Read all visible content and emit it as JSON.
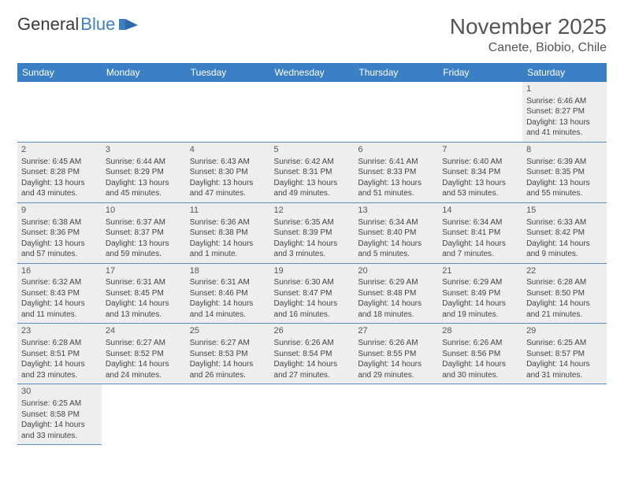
{
  "logo": {
    "part1": "General",
    "part2": "Blue"
  },
  "title": "November 2025",
  "location": "Canete, Biobio, Chile",
  "colors": {
    "header_bg": "#3b7fc4",
    "header_text": "#ffffff",
    "cell_bg": "#eeeeee",
    "rule": "#5a8fc7",
    "text": "#444444"
  },
  "day_headers": [
    "Sunday",
    "Monday",
    "Tuesday",
    "Wednesday",
    "Thursday",
    "Friday",
    "Saturday"
  ],
  "weeks": [
    [
      null,
      null,
      null,
      null,
      null,
      null,
      {
        "n": "1",
        "sr": "Sunrise: 6:46 AM",
        "ss": "Sunset: 8:27 PM",
        "dl1": "Daylight: 13 hours",
        "dl2": "and 41 minutes."
      }
    ],
    [
      {
        "n": "2",
        "sr": "Sunrise: 6:45 AM",
        "ss": "Sunset: 8:28 PM",
        "dl1": "Daylight: 13 hours",
        "dl2": "and 43 minutes."
      },
      {
        "n": "3",
        "sr": "Sunrise: 6:44 AM",
        "ss": "Sunset: 8:29 PM",
        "dl1": "Daylight: 13 hours",
        "dl2": "and 45 minutes."
      },
      {
        "n": "4",
        "sr": "Sunrise: 6:43 AM",
        "ss": "Sunset: 8:30 PM",
        "dl1": "Daylight: 13 hours",
        "dl2": "and 47 minutes."
      },
      {
        "n": "5",
        "sr": "Sunrise: 6:42 AM",
        "ss": "Sunset: 8:31 PM",
        "dl1": "Daylight: 13 hours",
        "dl2": "and 49 minutes."
      },
      {
        "n": "6",
        "sr": "Sunrise: 6:41 AM",
        "ss": "Sunset: 8:33 PM",
        "dl1": "Daylight: 13 hours",
        "dl2": "and 51 minutes."
      },
      {
        "n": "7",
        "sr": "Sunrise: 6:40 AM",
        "ss": "Sunset: 8:34 PM",
        "dl1": "Daylight: 13 hours",
        "dl2": "and 53 minutes."
      },
      {
        "n": "8",
        "sr": "Sunrise: 6:39 AM",
        "ss": "Sunset: 8:35 PM",
        "dl1": "Daylight: 13 hours",
        "dl2": "and 55 minutes."
      }
    ],
    [
      {
        "n": "9",
        "sr": "Sunrise: 6:38 AM",
        "ss": "Sunset: 8:36 PM",
        "dl1": "Daylight: 13 hours",
        "dl2": "and 57 minutes."
      },
      {
        "n": "10",
        "sr": "Sunrise: 6:37 AM",
        "ss": "Sunset: 8:37 PM",
        "dl1": "Daylight: 13 hours",
        "dl2": "and 59 minutes."
      },
      {
        "n": "11",
        "sr": "Sunrise: 6:36 AM",
        "ss": "Sunset: 8:38 PM",
        "dl1": "Daylight: 14 hours",
        "dl2": "and 1 minute."
      },
      {
        "n": "12",
        "sr": "Sunrise: 6:35 AM",
        "ss": "Sunset: 8:39 PM",
        "dl1": "Daylight: 14 hours",
        "dl2": "and 3 minutes."
      },
      {
        "n": "13",
        "sr": "Sunrise: 6:34 AM",
        "ss": "Sunset: 8:40 PM",
        "dl1": "Daylight: 14 hours",
        "dl2": "and 5 minutes."
      },
      {
        "n": "14",
        "sr": "Sunrise: 6:34 AM",
        "ss": "Sunset: 8:41 PM",
        "dl1": "Daylight: 14 hours",
        "dl2": "and 7 minutes."
      },
      {
        "n": "15",
        "sr": "Sunrise: 6:33 AM",
        "ss": "Sunset: 8:42 PM",
        "dl1": "Daylight: 14 hours",
        "dl2": "and 9 minutes."
      }
    ],
    [
      {
        "n": "16",
        "sr": "Sunrise: 6:32 AM",
        "ss": "Sunset: 8:43 PM",
        "dl1": "Daylight: 14 hours",
        "dl2": "and 11 minutes."
      },
      {
        "n": "17",
        "sr": "Sunrise: 6:31 AM",
        "ss": "Sunset: 8:45 PM",
        "dl1": "Daylight: 14 hours",
        "dl2": "and 13 minutes."
      },
      {
        "n": "18",
        "sr": "Sunrise: 6:31 AM",
        "ss": "Sunset: 8:46 PM",
        "dl1": "Daylight: 14 hours",
        "dl2": "and 14 minutes."
      },
      {
        "n": "19",
        "sr": "Sunrise: 6:30 AM",
        "ss": "Sunset: 8:47 PM",
        "dl1": "Daylight: 14 hours",
        "dl2": "and 16 minutes."
      },
      {
        "n": "20",
        "sr": "Sunrise: 6:29 AM",
        "ss": "Sunset: 8:48 PM",
        "dl1": "Daylight: 14 hours",
        "dl2": "and 18 minutes."
      },
      {
        "n": "21",
        "sr": "Sunrise: 6:29 AM",
        "ss": "Sunset: 8:49 PM",
        "dl1": "Daylight: 14 hours",
        "dl2": "and 19 minutes."
      },
      {
        "n": "22",
        "sr": "Sunrise: 6:28 AM",
        "ss": "Sunset: 8:50 PM",
        "dl1": "Daylight: 14 hours",
        "dl2": "and 21 minutes."
      }
    ],
    [
      {
        "n": "23",
        "sr": "Sunrise: 6:28 AM",
        "ss": "Sunset: 8:51 PM",
        "dl1": "Daylight: 14 hours",
        "dl2": "and 23 minutes."
      },
      {
        "n": "24",
        "sr": "Sunrise: 6:27 AM",
        "ss": "Sunset: 8:52 PM",
        "dl1": "Daylight: 14 hours",
        "dl2": "and 24 minutes."
      },
      {
        "n": "25",
        "sr": "Sunrise: 6:27 AM",
        "ss": "Sunset: 8:53 PM",
        "dl1": "Daylight: 14 hours",
        "dl2": "and 26 minutes."
      },
      {
        "n": "26",
        "sr": "Sunrise: 6:26 AM",
        "ss": "Sunset: 8:54 PM",
        "dl1": "Daylight: 14 hours",
        "dl2": "and 27 minutes."
      },
      {
        "n": "27",
        "sr": "Sunrise: 6:26 AM",
        "ss": "Sunset: 8:55 PM",
        "dl1": "Daylight: 14 hours",
        "dl2": "and 29 minutes."
      },
      {
        "n": "28",
        "sr": "Sunrise: 6:26 AM",
        "ss": "Sunset: 8:56 PM",
        "dl1": "Daylight: 14 hours",
        "dl2": "and 30 minutes."
      },
      {
        "n": "29",
        "sr": "Sunrise: 6:25 AM",
        "ss": "Sunset: 8:57 PM",
        "dl1": "Daylight: 14 hours",
        "dl2": "and 31 minutes."
      }
    ],
    [
      {
        "n": "30",
        "sr": "Sunrise: 6:25 AM",
        "ss": "Sunset: 8:58 PM",
        "dl1": "Daylight: 14 hours",
        "dl2": "and 33 minutes."
      },
      null,
      null,
      null,
      null,
      null,
      null
    ]
  ]
}
